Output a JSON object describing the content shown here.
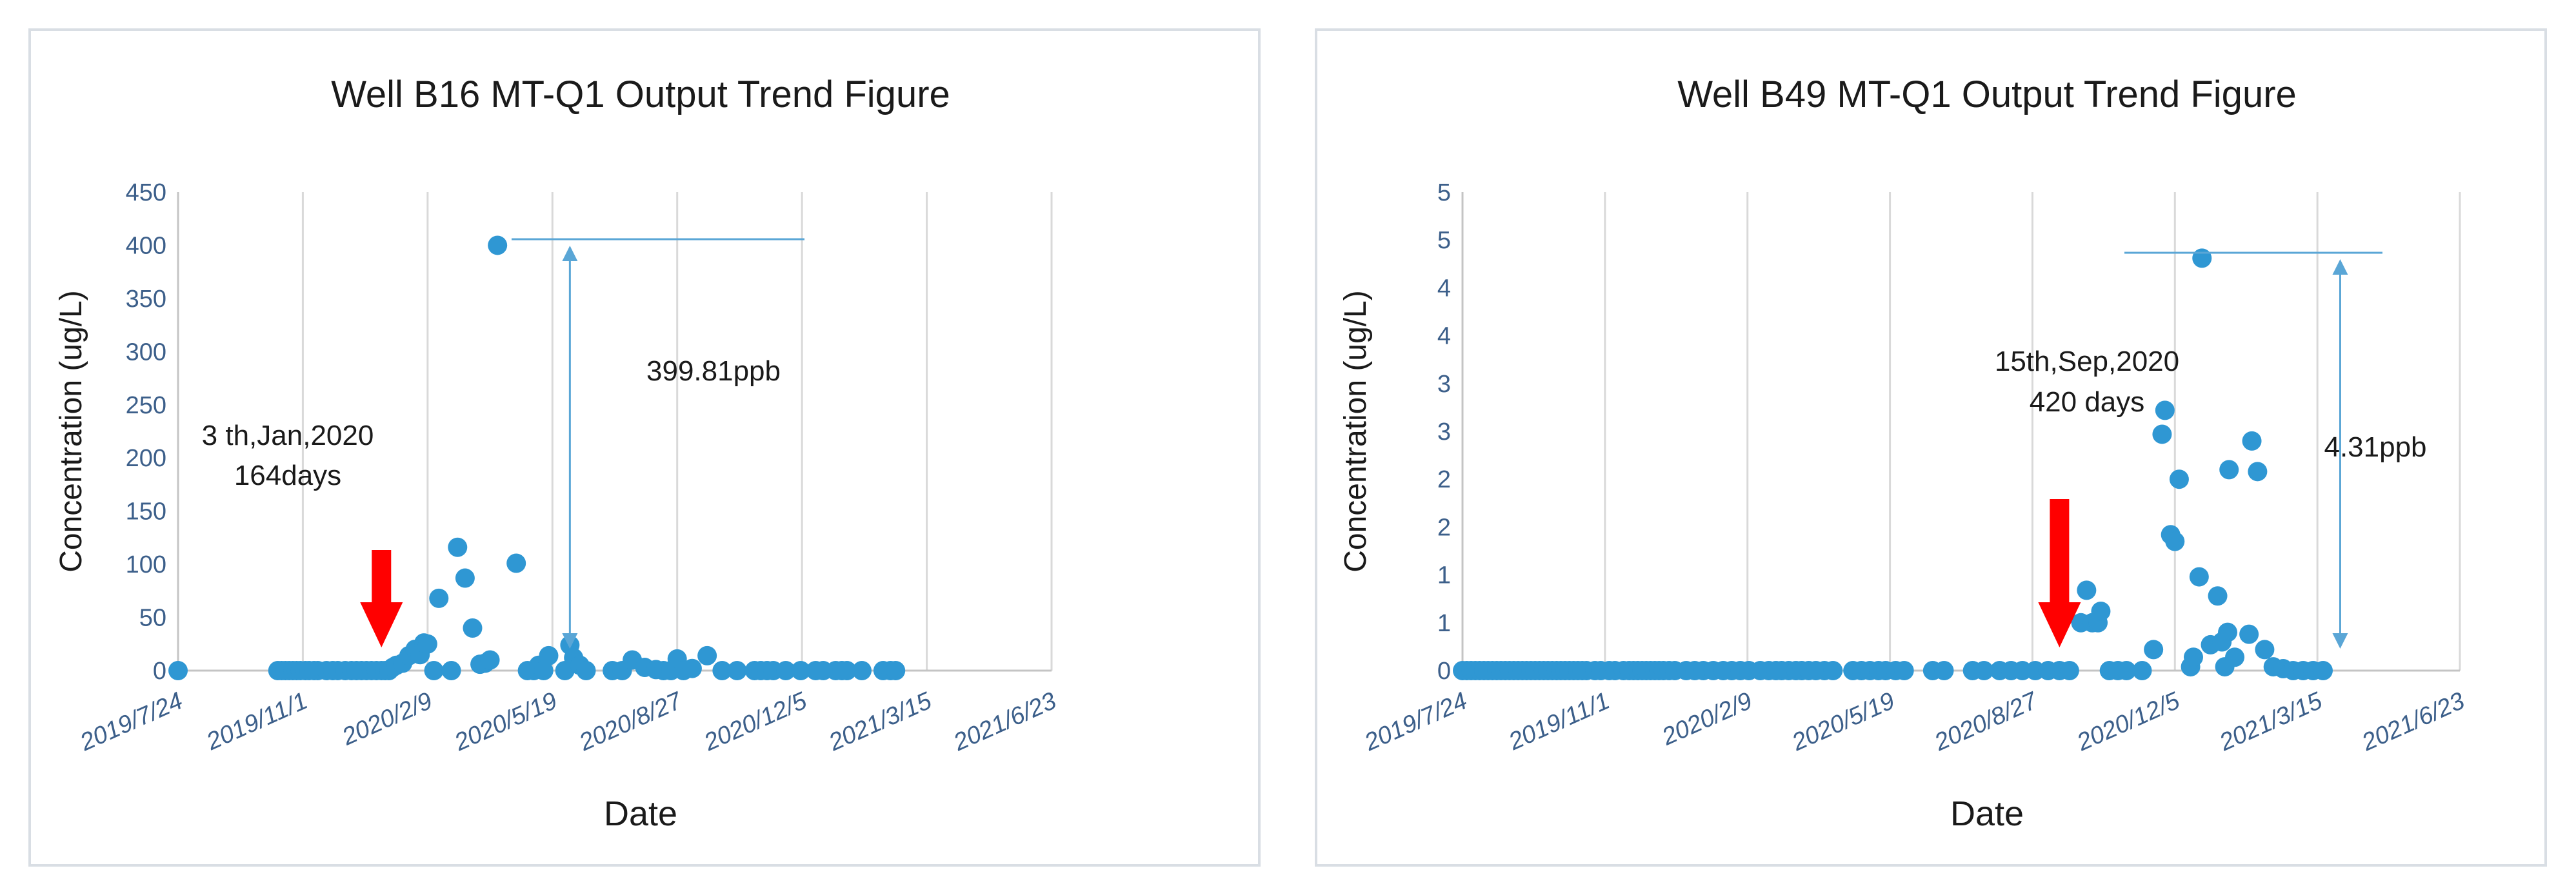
{
  "chart_data": [
    {
      "type": "scatter",
      "title": "Well B16 MT-Q1 Output Trend Figure",
      "xlabel": "Date",
      "ylabel": "Concentration (ug/L)",
      "x_ticks": [
        "2019/7/24",
        "2019/11/1",
        "2020/2/9",
        "2020/5/19",
        "2020/8/27",
        "2020/12/5",
        "2021/3/15",
        "2021/6/23"
      ],
      "y_ticks": [
        "0",
        "50",
        "100",
        "150",
        "200",
        "250",
        "300",
        "350",
        "400",
        "450"
      ],
      "xlim": [
        "2019-07-24",
        "2021-06-23"
      ],
      "ylim": [
        0,
        450
      ],
      "grid": "vertical",
      "legend": "none",
      "colors": {
        "points": "#2f97d3",
        "arrow": "#ff0000",
        "measure": "#5aa6d6"
      },
      "series": [
        {
          "points": [
            [
              "2019-07-24",
              0
            ],
            [
              "2019-10-12",
              0
            ],
            [
              "2019-10-15",
              0
            ],
            [
              "2019-10-18",
              0
            ],
            [
              "2019-10-21",
              0
            ],
            [
              "2019-10-24",
              0
            ],
            [
              "2019-10-27",
              0
            ],
            [
              "2019-10-30",
              0
            ],
            [
              "2019-11-03",
              0
            ],
            [
              "2019-11-06",
              0
            ],
            [
              "2019-11-10",
              0
            ],
            [
              "2019-11-13",
              0
            ],
            [
              "2019-11-20",
              0
            ],
            [
              "2019-11-25",
              0
            ],
            [
              "2019-11-29",
              0
            ],
            [
              "2019-12-05",
              0
            ],
            [
              "2019-12-10",
              0
            ],
            [
              "2019-12-14",
              0
            ],
            [
              "2019-12-18",
              0
            ],
            [
              "2019-12-22",
              0
            ],
            [
              "2019-12-26",
              0
            ],
            [
              "2019-12-30",
              0
            ],
            [
              "2020-01-03",
              0
            ],
            [
              "2020-01-06",
              0
            ],
            [
              "2020-01-09",
              0
            ],
            [
              "2020-01-12",
              3
            ],
            [
              "2020-01-15",
              5
            ],
            [
              "2020-01-20",
              7
            ],
            [
              "2020-01-25",
              14
            ],
            [
              "2020-01-30",
              20
            ],
            [
              "2020-02-03",
              15
            ],
            [
              "2020-02-06",
              26
            ],
            [
              "2020-02-09",
              25
            ],
            [
              "2020-02-14",
              0
            ],
            [
              "2020-02-18",
              68
            ],
            [
              "2020-02-28",
              0
            ],
            [
              "2020-03-04",
              116
            ],
            [
              "2020-03-10",
              87
            ],
            [
              "2020-03-16",
              40
            ],
            [
              "2020-03-22",
              6
            ],
            [
              "2020-03-26",
              7
            ],
            [
              "2020-03-30",
              10
            ],
            [
              "2020-04-05",
              400
            ],
            [
              "2020-04-20",
              101
            ],
            [
              "2020-04-29",
              0
            ],
            [
              "2020-05-04",
              0
            ],
            [
              "2020-05-08",
              5
            ],
            [
              "2020-05-12",
              0
            ],
            [
              "2020-05-16",
              14
            ],
            [
              "2020-05-29",
              0
            ],
            [
              "2020-06-02",
              24
            ],
            [
              "2020-06-05",
              12
            ],
            [
              "2020-06-10",
              5
            ],
            [
              "2020-06-15",
              0
            ],
            [
              "2020-07-06",
              0
            ],
            [
              "2020-07-14",
              0
            ],
            [
              "2020-07-22",
              10
            ],
            [
              "2020-08-01",
              3
            ],
            [
              "2020-08-10",
              1
            ],
            [
              "2020-08-16",
              0
            ],
            [
              "2020-08-22",
              0
            ],
            [
              "2020-08-27",
              11
            ],
            [
              "2020-09-01",
              0
            ],
            [
              "2020-09-08",
              2
            ],
            [
              "2020-09-20",
              14
            ],
            [
              "2020-10-02",
              0
            ],
            [
              "2020-10-14",
              0
            ],
            [
              "2020-10-28",
              0
            ],
            [
              "2020-11-02",
              0
            ],
            [
              "2020-11-07",
              0
            ],
            [
              "2020-11-12",
              0
            ],
            [
              "2020-11-22",
              0
            ],
            [
              "2020-12-04",
              0
            ],
            [
              "2020-12-16",
              0
            ],
            [
              "2020-12-22",
              0
            ],
            [
              "2021-01-01",
              0
            ],
            [
              "2021-01-06",
              0
            ],
            [
              "2021-01-10",
              0
            ],
            [
              "2021-01-22",
              0
            ],
            [
              "2021-02-08",
              0
            ],
            [
              "2021-02-14",
              0
            ],
            [
              "2021-02-18",
              0
            ]
          ]
        }
      ],
      "annotations": {
        "event_date": "3 th,Jan,2020",
        "event_days": "164days",
        "peak_label": "399.81ppb",
        "arrow_date": "2020-01-03",
        "peak_date": "2020-04-05",
        "peak_value": 400,
        "measure_date": "2020-06-02"
      }
    },
    {
      "type": "scatter",
      "title": "Well B49 MT-Q1 Output Trend Figure",
      "xlabel": "Date",
      "ylabel": "Concentration (ug/L)",
      "x_ticks": [
        "2019/7/24",
        "2019/11/1",
        "2020/2/9",
        "2020/5/19",
        "2020/8/27",
        "2020/12/5",
        "2021/3/15",
        "2021/6/23"
      ],
      "y_ticks": [
        "0",
        "1",
        "1",
        "2",
        "2",
        "3",
        "3",
        "4",
        "4",
        "5",
        "5"
      ],
      "xlim": [
        "2019-07-24",
        "2021-06-23"
      ],
      "ylim": [
        0,
        5
      ],
      "grid": "vertical",
      "legend": "none",
      "colors": {
        "points": "#2f97d3",
        "arrow": "#ff0000",
        "measure": "#5aa6d6"
      },
      "series": [
        {
          "points": [
            [
              "2019-07-24",
              0
            ],
            [
              "2019-07-27",
              0
            ],
            [
              "2019-07-30",
              0
            ],
            [
              "2019-08-02",
              0
            ],
            [
              "2019-08-05",
              0
            ],
            [
              "2019-08-08",
              0
            ],
            [
              "2019-08-11",
              0
            ],
            [
              "2019-08-14",
              0
            ],
            [
              "2019-08-17",
              0
            ],
            [
              "2019-08-20",
              0
            ],
            [
              "2019-08-23",
              0
            ],
            [
              "2019-08-26",
              0
            ],
            [
              "2019-08-29",
              0
            ],
            [
              "2019-09-01",
              0
            ],
            [
              "2019-09-04",
              0
            ],
            [
              "2019-09-07",
              0
            ],
            [
              "2019-09-10",
              0
            ],
            [
              "2019-09-13",
              0
            ],
            [
              "2019-09-16",
              0
            ],
            [
              "2019-09-19",
              0
            ],
            [
              "2019-09-22",
              0
            ],
            [
              "2019-09-25",
              0
            ],
            [
              "2019-09-28",
              0
            ],
            [
              "2019-10-01",
              0
            ],
            [
              "2019-10-04",
              0
            ],
            [
              "2019-10-07",
              0
            ],
            [
              "2019-10-10",
              0
            ],
            [
              "2019-10-13",
              0
            ],
            [
              "2019-10-16",
              0
            ],
            [
              "2019-10-19",
              0
            ],
            [
              "2019-10-25",
              0
            ],
            [
              "2019-10-29",
              0
            ],
            [
              "2019-11-04",
              0
            ],
            [
              "2019-11-08",
              0
            ],
            [
              "2019-11-14",
              0
            ],
            [
              "2019-11-18",
              0
            ],
            [
              "2019-11-21",
              0
            ],
            [
              "2019-11-24",
              0
            ],
            [
              "2019-11-27",
              0
            ],
            [
              "2019-11-30",
              0
            ],
            [
              "2019-12-03",
              0
            ],
            [
              "2019-12-06",
              0
            ],
            [
              "2019-12-09",
              0
            ],
            [
              "2019-12-12",
              0
            ],
            [
              "2019-12-16",
              0
            ],
            [
              "2019-12-20",
              0
            ],
            [
              "2019-12-28",
              0
            ],
            [
              "2020-01-03",
              0
            ],
            [
              "2020-01-09",
              0
            ],
            [
              "2020-01-16",
              0
            ],
            [
              "2020-01-23",
              0
            ],
            [
              "2020-01-29",
              0
            ],
            [
              "2020-02-04",
              0
            ],
            [
              "2020-02-10",
              0
            ],
            [
              "2020-02-18",
              0
            ],
            [
              "2020-02-24",
              0
            ],
            [
              "2020-02-29",
              0
            ],
            [
              "2020-03-04",
              0
            ],
            [
              "2020-03-09",
              0
            ],
            [
              "2020-03-14",
              0
            ],
            [
              "2020-03-18",
              0
            ],
            [
              "2020-03-23",
              0
            ],
            [
              "2020-03-28",
              0
            ],
            [
              "2020-04-03",
              0
            ],
            [
              "2020-04-09",
              0
            ],
            [
              "2020-04-23",
              0
            ],
            [
              "2020-04-29",
              0
            ],
            [
              "2020-05-05",
              0
            ],
            [
              "2020-05-11",
              0
            ],
            [
              "2020-05-16",
              0
            ],
            [
              "2020-05-23",
              0
            ],
            [
              "2020-05-29",
              0
            ],
            [
              "2020-06-18",
              0
            ],
            [
              "2020-06-26",
              0
            ],
            [
              "2020-07-16",
              0
            ],
            [
              "2020-07-24",
              0
            ],
            [
              "2020-08-04",
              0
            ],
            [
              "2020-08-12",
              0
            ],
            [
              "2020-08-20",
              0
            ],
            [
              "2020-08-29",
              0
            ],
            [
              "2020-09-07",
              0
            ],
            [
              "2020-09-15",
              0
            ],
            [
              "2020-09-22",
              0
            ],
            [
              "2020-09-30",
              0.5
            ],
            [
              "2020-10-04",
              0.84
            ],
            [
              "2020-10-08",
              0.5
            ],
            [
              "2020-10-12",
              0.5
            ],
            [
              "2020-10-14",
              0.62
            ],
            [
              "2020-10-20",
              0
            ],
            [
              "2020-10-26",
              0
            ],
            [
              "2020-11-01",
              0
            ],
            [
              "2020-11-12",
              0
            ],
            [
              "2020-11-20",
              0.22
            ],
            [
              "2020-11-26",
              2.47
            ],
            [
              "2020-11-28",
              2.72
            ],
            [
              "2020-12-02",
              1.42
            ],
            [
              "2020-12-05",
              1.35
            ],
            [
              "2020-12-08",
              2.0
            ],
            [
              "2020-12-16",
              0.04
            ],
            [
              "2020-12-18",
              0.14
            ],
            [
              "2020-12-22",
              0.98
            ],
            [
              "2020-12-24",
              4.31
            ],
            [
              "2020-12-30",
              0.27
            ],
            [
              "2021-01-04",
              0.78
            ],
            [
              "2021-01-07",
              0.3
            ],
            [
              "2021-01-09",
              0.04
            ],
            [
              "2021-01-11",
              0.4
            ],
            [
              "2021-01-12",
              2.1
            ],
            [
              "2021-01-16",
              0.14
            ],
            [
              "2021-01-26",
              0.38
            ],
            [
              "2021-01-28",
              2.4
            ],
            [
              "2021-02-01",
              2.08
            ],
            [
              "2021-02-06",
              0.22
            ],
            [
              "2021-02-12",
              0.04
            ],
            [
              "2021-02-19",
              0.02
            ],
            [
              "2021-02-26",
              0.0
            ],
            [
              "2021-03-05",
              0.0
            ],
            [
              "2021-03-12",
              0.0
            ],
            [
              "2021-03-19",
              0.0
            ]
          ]
        }
      ],
      "annotations": {
        "event_date": "15th,Sep,2020",
        "event_days": "420 days",
        "peak_label": "4.31ppb",
        "arrow_date": "2020-09-15",
        "peak_date": "2020-12-24",
        "peak_value": 4.31,
        "measure_date": "2021-03-31"
      }
    }
  ]
}
